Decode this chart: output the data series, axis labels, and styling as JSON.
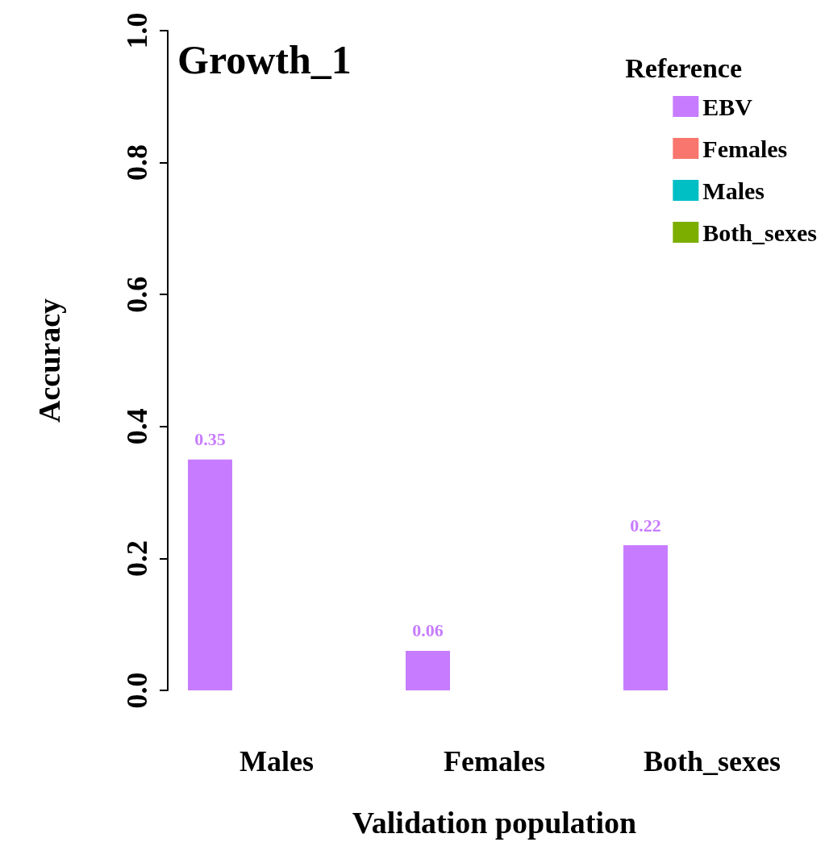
{
  "chart_data": {
    "type": "bar",
    "title": "Growth_1",
    "xlabel": "Validation population",
    "ylabel": "Accuracy",
    "legend_title": "Reference",
    "categories": [
      "Males",
      "Females",
      "Both_sexes"
    ],
    "series": [
      {
        "name": "EBV",
        "color": "#c77cff",
        "values": [
          0.35,
          0.06,
          0.22
        ]
      },
      {
        "name": "Females",
        "color": "#f8766d",
        "values": [
          null,
          null,
          null
        ]
      },
      {
        "name": "Males",
        "color": "#00bfc4",
        "values": [
          null,
          null,
          null
        ]
      },
      {
        "name": "Both_sexes",
        "color": "#7cae00",
        "values": [
          null,
          null,
          null
        ]
      }
    ],
    "ylim": [
      0,
      1
    ],
    "yticks": [
      {
        "value": 0,
        "label": "0.0"
      },
      {
        "value": 0.2,
        "label": "0.2"
      },
      {
        "value": 0.4,
        "label": "0.4"
      },
      {
        "value": 0.6,
        "label": "0.6"
      },
      {
        "value": 0.8,
        "label": "0.8"
      },
      {
        "value": 1,
        "label": "1.0"
      }
    ],
    "data_labels": true,
    "grid": false,
    "legend": "top right"
  }
}
